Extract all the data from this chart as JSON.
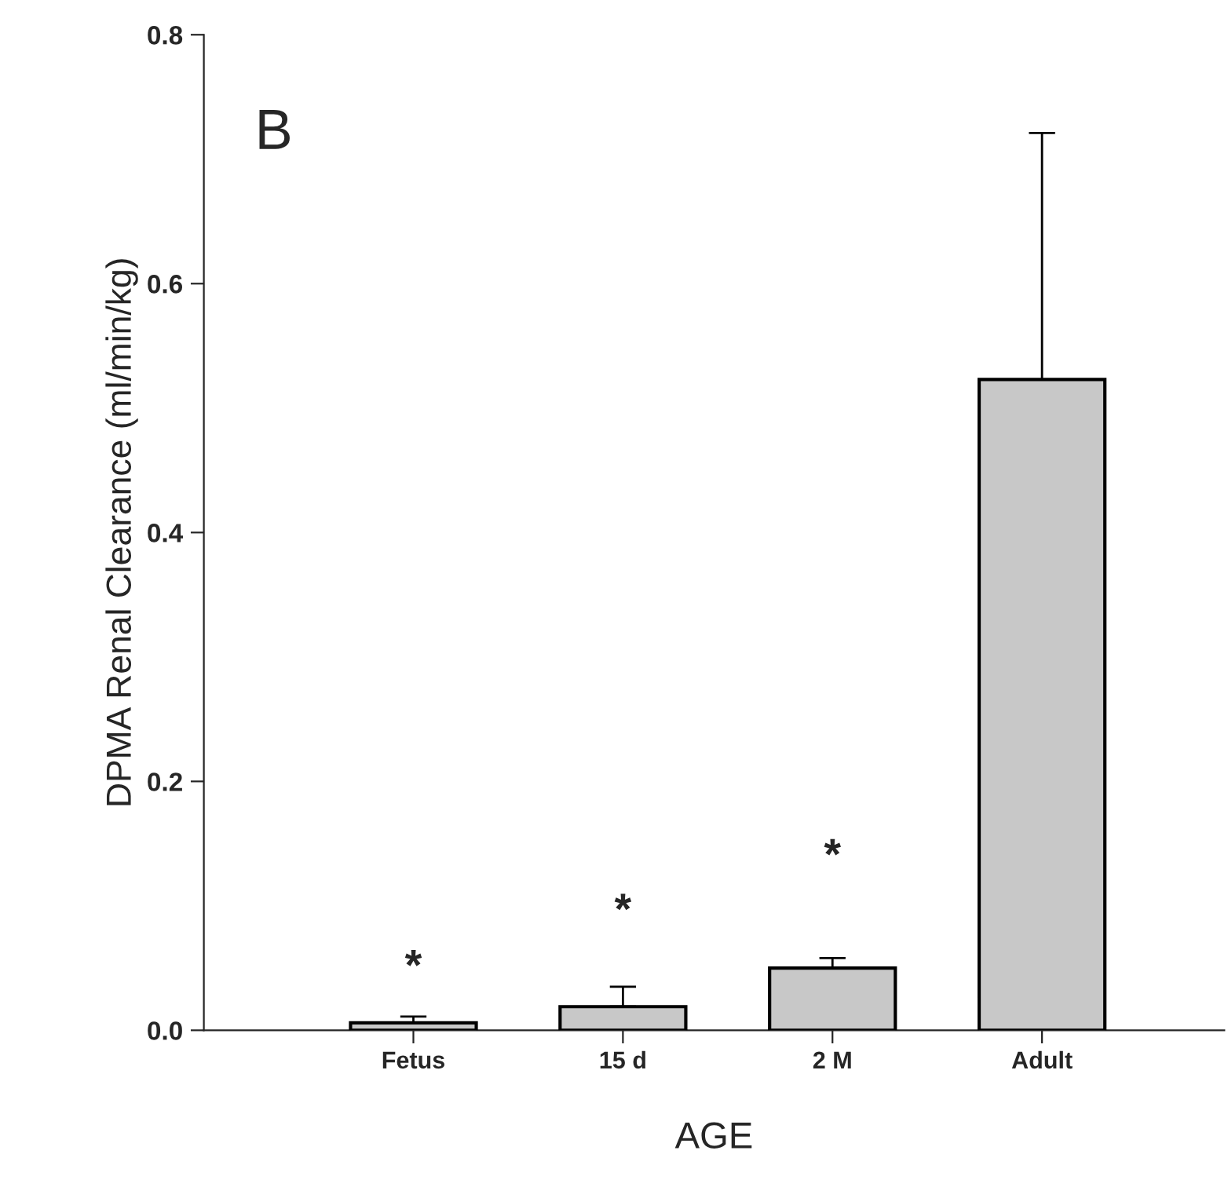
{
  "chart_data": {
    "type": "bar",
    "xlabel": "AGE",
    "ylabel": "DPMA Renal Clearance (ml/min/kg)",
    "categories": [
      "Fetus",
      "15 d",
      "2 M",
      "Adult"
    ],
    "values": [
      0.006,
      0.019,
      0.05,
      0.523
    ],
    "errors": [
      [
        0.006,
        0.011
      ],
      [
        0.019,
        0.035
      ],
      [
        0.05,
        0.058
      ],
      [
        0.523,
        0.721
      ]
    ],
    "color": "#c8c8c8",
    "ylim": [
      0,
      0.8
    ],
    "yticks": [
      {
        "value": 0,
        "label": "0.0"
      },
      0.2,
      0.4,
      0.6,
      0.8
    ],
    "grid": false,
    "legend": false,
    "annotations": [
      "B",
      "*",
      "*",
      "*"
    ]
  }
}
